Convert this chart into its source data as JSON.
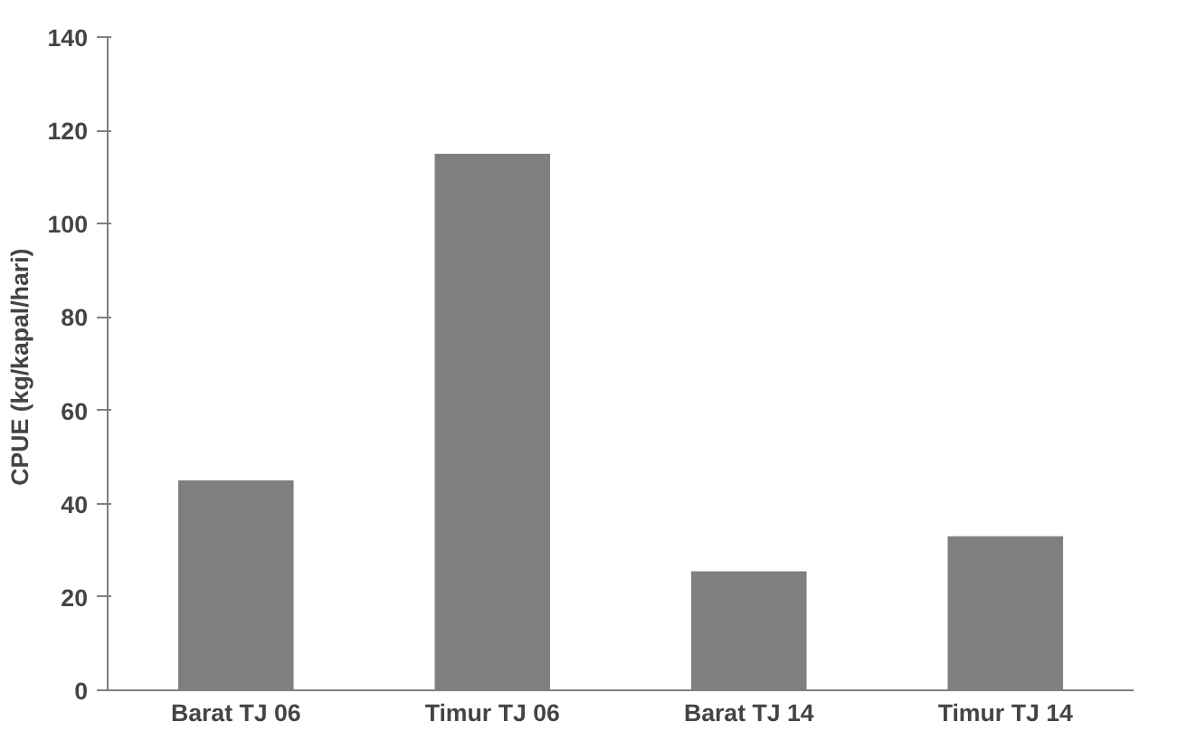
{
  "chart_data": {
    "type": "bar",
    "ylabel": "CPUE  (kg/kapal/hari)",
    "categories": [
      "Barat TJ 06",
      "Timur TJ 06",
      "Barat TJ 14",
      "Timur TJ 14"
    ],
    "values": [
      45,
      115,
      25.5,
      33
    ],
    "color": "#7f7f7f",
    "ylim": [
      0,
      140
    ],
    "yticks": [
      0,
      20,
      40,
      60,
      80,
      100,
      120,
      140
    ],
    "grid": false
  }
}
